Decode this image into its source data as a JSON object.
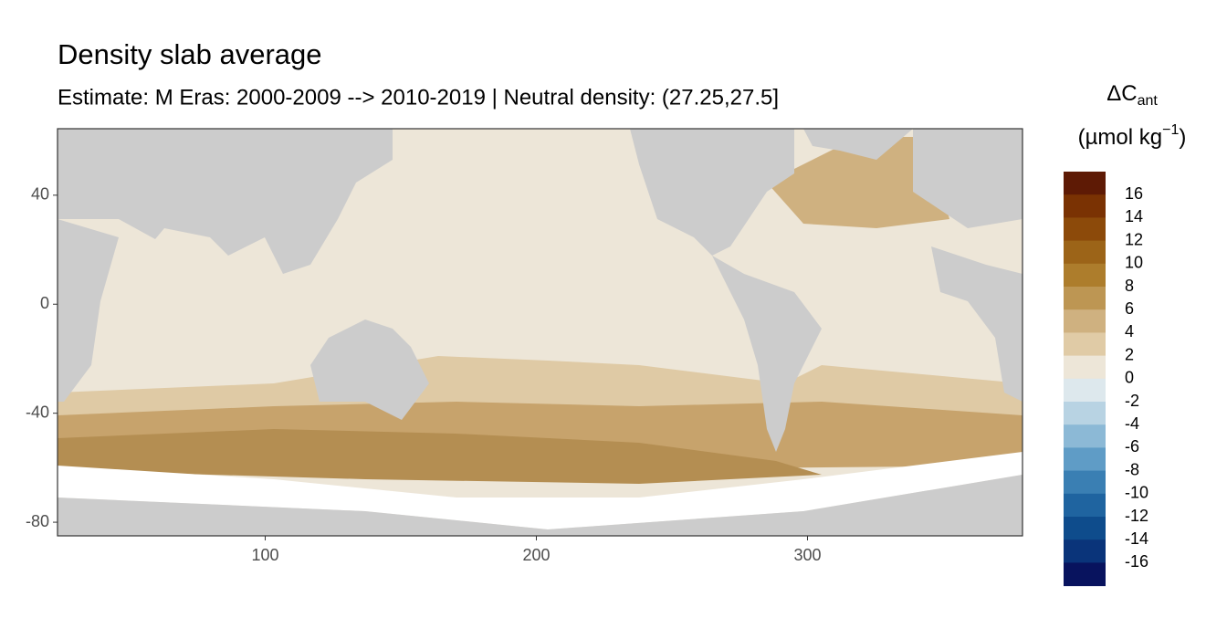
{
  "chart_data": {
    "type": "raster_map",
    "title": "Density slab average",
    "subtitle": "Estimate: M Eras: 2000-2009 --> 2010-2019 | Neutral density: (27.25,27.5]",
    "xlim": [
      23.4,
      379.3
    ],
    "xticks": [
      100,
      200,
      300
    ],
    "ylim": [
      -85,
      64.4
    ],
    "yticks": [
      40,
      0,
      -40,
      -80
    ],
    "legend": {
      "title": "ΔC",
      "title_sub": "ant",
      "unit_prefix": "(µmol kg",
      "unit_sup": "−1",
      "unit_suffix": ")",
      "breaks": [
        16,
        14,
        12,
        10,
        8,
        6,
        4,
        2,
        0,
        -2,
        -4,
        -6,
        -8,
        -10,
        -12,
        -14,
        -16
      ],
      "colors": [
        "#5e1a05",
        "#7a3203",
        "#8c4a0a",
        "#9c6418",
        "#ad7d2c",
        "#bd9653",
        "#cfb180",
        "#e0cba6",
        "#ede6d8",
        "#dde8ed",
        "#b8d3e3",
        "#8cb9d6",
        "#5f9cc6",
        "#3a7fb3",
        "#1f64a0",
        "#0e4c8c",
        "#0a347a",
        "#08135e"
      ]
    }
  }
}
